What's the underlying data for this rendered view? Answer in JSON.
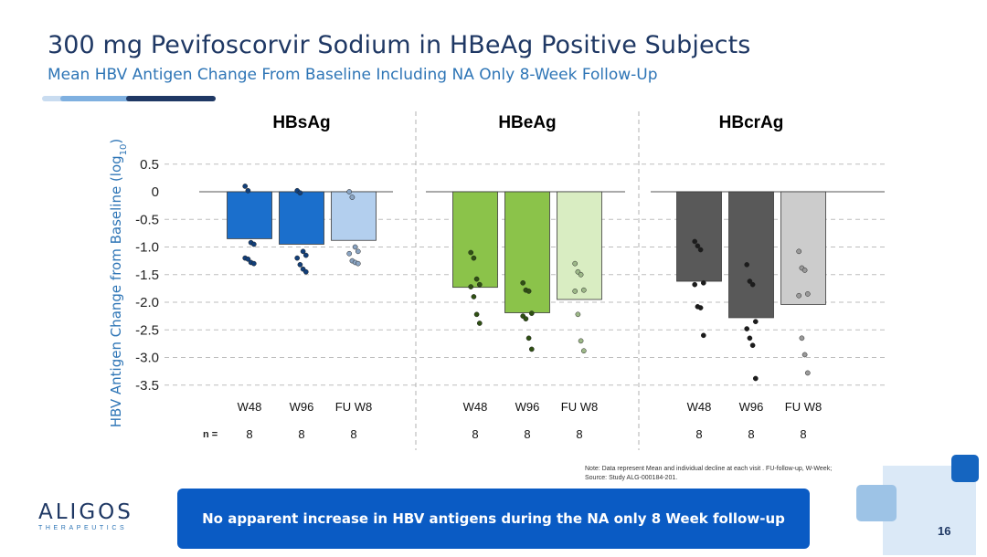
{
  "slide": {
    "title": "300 mg Pevifoscorvir Sodium in HBeAg Positive Subjects",
    "subtitle": "Mean HBV Antigen Change From Baseline Including NA Only 8-Week Follow-Up",
    "note_line1": "Note: Data represent Mean and individual decline at each visit . FU-follow-up, W-Week;",
    "note_line2": "Source: Study ALG-000184-201.",
    "banner": "No apparent increase in HBV antigens during the NA only 8 Week follow-up",
    "logo_name": "ALIGOS",
    "logo_sub": "THERAPEUTICS",
    "page_number": "16"
  },
  "colors": {
    "title": "#1f3864",
    "subtitle": "#2e75b6",
    "banner": "#0a5bc4"
  },
  "chart_data": {
    "type": "bar",
    "ylabel": "HBV Antigen Change from Baseline (log10)",
    "ylim": [
      -3.5,
      0.5
    ],
    "yticks": [
      0.5,
      0,
      -0.5,
      -1.0,
      -1.5,
      -2.0,
      -2.5,
      -3.0,
      -3.5
    ],
    "ytick_labels": [
      "0.5",
      "0",
      "-0.5",
      "-1.0",
      "-1.5",
      "-2.0",
      "-2.5",
      "-3.0",
      "-3.5"
    ],
    "n_label": "n =",
    "panels": [
      {
        "title": "HBsAg",
        "categories": [
          "W48",
          "W96",
          "FU W8"
        ],
        "n": [
          "8",
          "8",
          "8"
        ],
        "bar_colors": [
          "#1b6fcc",
          "#1b6fcc",
          "#b3cfee"
        ],
        "point_colors": [
          "#123f7a",
          "#123f7a",
          "#8aa4c2"
        ],
        "means": [
          -0.85,
          -0.95,
          -0.88
        ],
        "points": [
          [
            0.1,
            0.02,
            -0.92,
            -0.95,
            -1.2,
            -1.22,
            -1.28,
            -1.3
          ],
          [
            0.02,
            -0.02,
            -1.08,
            -1.15,
            -1.2,
            -1.32,
            -1.4,
            -1.45
          ],
          [
            0.0,
            -0.1,
            -1.0,
            -1.08,
            -1.12,
            -1.25,
            -1.28,
            -1.3
          ]
        ]
      },
      {
        "title": "HBeAg",
        "categories": [
          "W48",
          "W96",
          "FU W8"
        ],
        "n": [
          "8",
          "8",
          "8"
        ],
        "bar_colors": [
          "#8bc34a",
          "#8bc34a",
          "#d9edc2"
        ],
        "point_colors": [
          "#2f5013",
          "#2f5013",
          "#9db888"
        ],
        "means": [
          -1.73,
          -2.19,
          -1.95
        ],
        "points": [
          [
            -1.1,
            -1.2,
            -1.58,
            -1.68,
            -1.72,
            -1.9,
            -2.22,
            -2.38
          ],
          [
            -1.65,
            -1.78,
            -1.8,
            -2.2,
            -2.25,
            -2.3,
            -2.65,
            -2.85
          ],
          [
            -1.3,
            -1.45,
            -1.5,
            -1.78,
            -1.8,
            -2.22,
            -2.7,
            -2.88
          ]
        ]
      },
      {
        "title": "HBcrAg",
        "categories": [
          "W48",
          "W96",
          "FU W8"
        ],
        "n": [
          "8",
          "8",
          "8"
        ],
        "bar_colors": [
          "#595959",
          "#595959",
          "#cccccc"
        ],
        "point_colors": [
          "#1c1c1c",
          "#1c1c1c",
          "#9a9a9a"
        ],
        "means": [
          -1.62,
          -2.28,
          -2.04
        ],
        "points": [
          [
            -0.9,
            -0.98,
            -1.05,
            -1.65,
            -1.68,
            -2.08,
            -2.1,
            -2.6
          ],
          [
            -1.32,
            -1.62,
            -1.68,
            -2.35,
            -2.48,
            -2.65,
            -2.78,
            -3.38
          ],
          [
            -1.08,
            -1.38,
            -1.42,
            -1.85,
            -1.88,
            -2.65,
            -2.95,
            -3.28
          ]
        ]
      }
    ]
  }
}
